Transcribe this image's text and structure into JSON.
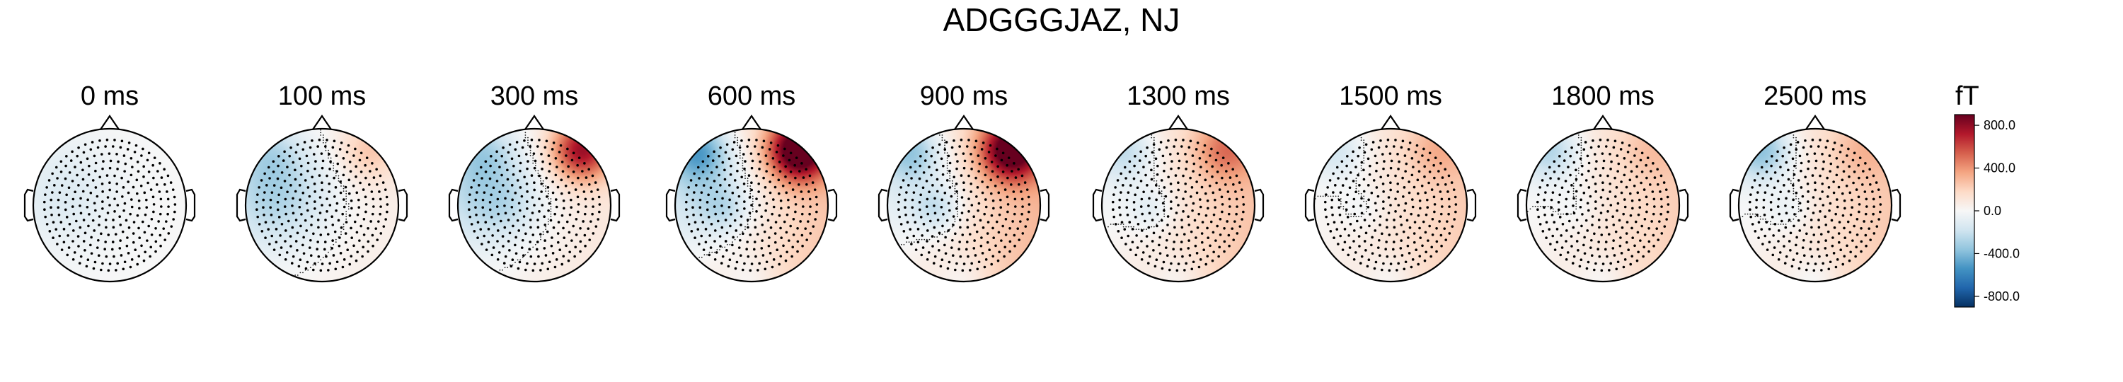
{
  "chart_data": {
    "type": "heatmap",
    "title": "ADGGGJAZ, NJ",
    "colormap": "RdBu_r",
    "colors": {
      "min": "#053061",
      "mid": "#f7f7f7",
      "max": "#67001f",
      "outline": "#000000",
      "sensor": "#000000"
    },
    "grid": false,
    "legend": "right",
    "times": [
      "0 ms",
      "100 ms",
      "300 ms",
      "600 ms",
      "900 ms",
      "1300 ms",
      "1500 ms",
      "1800 ms",
      "2500 ms"
    ],
    "colorbar": {
      "unit": "fT",
      "range": [
        -900,
        900
      ],
      "ticks": [
        800.0,
        400.0,
        0.0,
        -400.0,
        -800.0
      ],
      "tick_labels": [
        "800.0",
        "400.0",
        "0.0",
        "-400.0",
        "-800.0"
      ]
    },
    "field_components": {
      "description_keys": [
        "base",
        "left_lobe",
        "front_right_peak",
        "left_front_dip",
        "central_dip",
        "back_dip"
      ],
      "values": [
        [
          0,
          -120,
          0,
          0,
          0,
          0
        ],
        [
          60,
          -300,
          200,
          -150,
          0,
          0
        ],
        [
          100,
          -300,
          700,
          -200,
          -50,
          0
        ],
        [
          250,
          -250,
          950,
          -450,
          -150,
          -100
        ],
        [
          300,
          -150,
          850,
          -350,
          -200,
          -120
        ],
        [
          260,
          -60,
          300,
          -250,
          -130,
          -100
        ],
        [
          230,
          -20,
          150,
          -200,
          -80,
          -100
        ],
        [
          220,
          -30,
          100,
          -300,
          -60,
          -100
        ],
        [
          240,
          -40,
          120,
          -400,
          -100,
          -120
        ]
      ]
    }
  }
}
